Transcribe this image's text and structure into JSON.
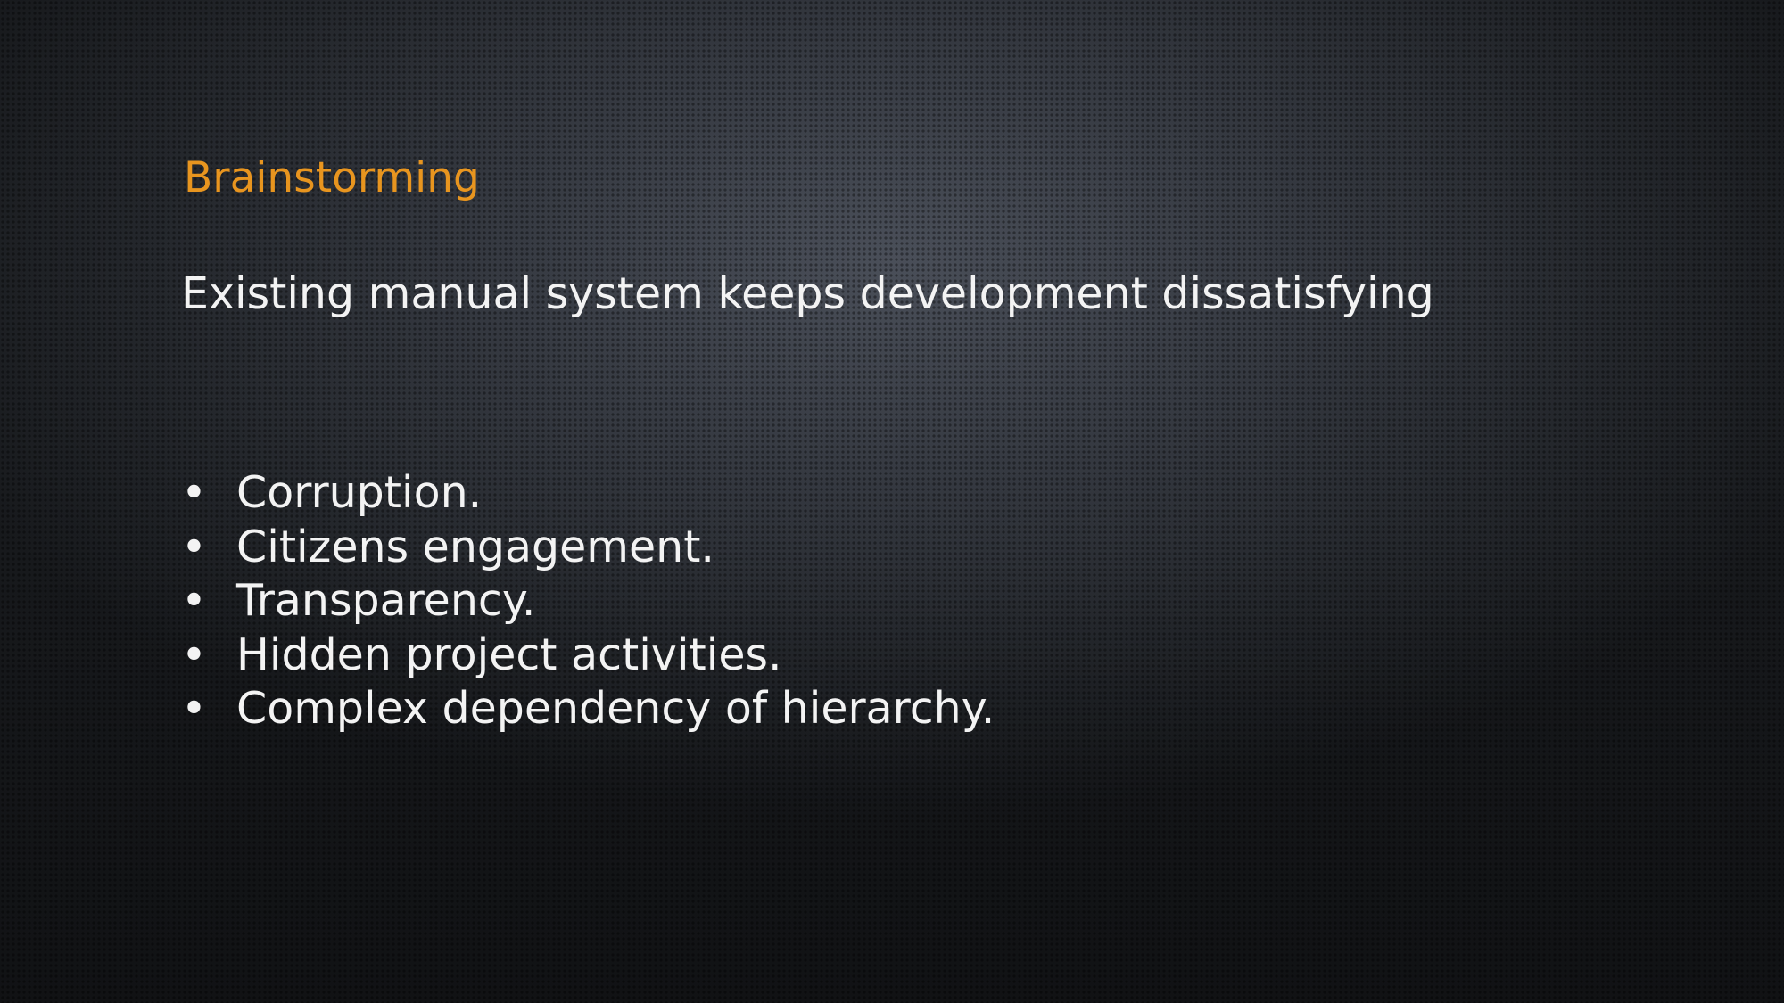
{
  "slide": {
    "title": "Brainstorming",
    "subtitle": "Existing manual system keeps development dissatisfying",
    "bullet_symbol": "•",
    "bullets": [
      "Corruption.",
      "Citizens engagement.",
      "Transparency.",
      "Hidden project activities.",
      "Complex dependency of hierarchy."
    ]
  },
  "colors": {
    "title": "#e8951f",
    "text": "#f3f3f3",
    "background": "#2f3238"
  }
}
